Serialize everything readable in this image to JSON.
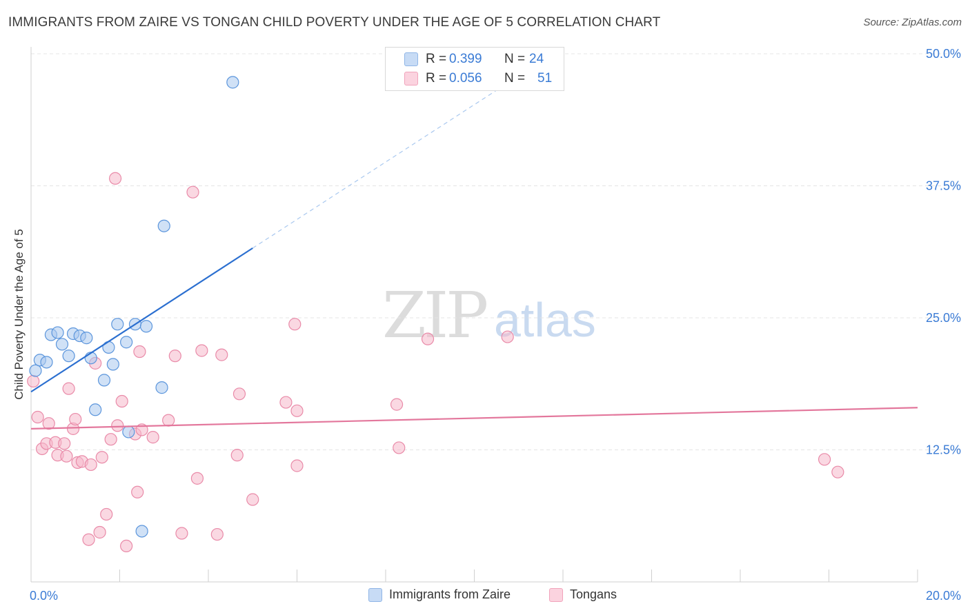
{
  "header": {
    "title": "IMMIGRANTS FROM ZAIRE VS TONGAN CHILD POVERTY UNDER THE AGE OF 5 CORRELATION CHART",
    "source": "Source: ZipAtlas.com"
  },
  "watermark": {
    "zip": "ZIP",
    "atlas": "atlas"
  },
  "legend_top": {
    "rows": [
      {
        "r_label": "R =",
        "r_value": "0.399",
        "n_label": "N =",
        "n_value": "24",
        "color": "#a9c8ef"
      },
      {
        "r_label": "R =",
        "r_value": "0.056",
        "n_label": "N =",
        "n_value": "51",
        "color": "#f5b8cb"
      }
    ]
  },
  "legend_bottom": [
    {
      "label": "Immigrants from Zaire",
      "color": "#a9c8ef"
    },
    {
      "label": "Tongans",
      "color": "#f5b8cb"
    }
  ],
  "chart_data": {
    "type": "scatter",
    "title": "IMMIGRANTS FROM ZAIRE VS TONGAN CHILD POVERTY UNDER THE AGE OF 5 CORRELATION CHART",
    "xlabel": "",
    "ylabel": "Child Poverty Under the Age of 5",
    "xlim": [
      0,
      20
    ],
    "ylim": [
      0,
      50
    ],
    "x_tick_labels": [
      "0.0%",
      "20.0%"
    ],
    "y_tick_labels": [
      "12.5%",
      "25.0%",
      "37.5%",
      "50.0%"
    ],
    "y_ticks": [
      12.5,
      25.0,
      37.5,
      50.0
    ],
    "grid": true,
    "colors": {
      "zaire": "#5b95dc",
      "zaire_fill": "#a9c8ef",
      "zaire_line": "#2b6fd0",
      "tongan": "#e98aa8",
      "tongan_fill": "#f5b8cb",
      "tongan_line": "#e3779c",
      "tick_text": "#3a7bd5"
    },
    "series": [
      {
        "name": "Immigrants from Zaire",
        "points": [
          [
            0.1,
            20.0
          ],
          [
            0.2,
            21.0
          ],
          [
            0.35,
            20.8
          ],
          [
            0.45,
            23.4
          ],
          [
            0.6,
            23.6
          ],
          [
            0.7,
            22.5
          ],
          [
            0.85,
            21.4
          ],
          [
            0.95,
            23.5
          ],
          [
            1.1,
            23.3
          ],
          [
            1.25,
            23.1
          ],
          [
            1.35,
            21.2
          ],
          [
            1.45,
            16.3
          ],
          [
            1.65,
            19.1
          ],
          [
            1.75,
            22.2
          ],
          [
            1.85,
            20.6
          ],
          [
            1.95,
            24.4
          ],
          [
            2.15,
            22.7
          ],
          [
            2.2,
            14.2
          ],
          [
            2.35,
            24.4
          ],
          [
            2.5,
            4.8
          ],
          [
            2.6,
            24.2
          ],
          [
            2.95,
            18.4
          ],
          [
            3.0,
            33.7
          ],
          [
            4.55,
            47.3
          ]
        ],
        "trend": {
          "x": [
            0,
            5.0
          ],
          "y": [
            18.0,
            31.6
          ],
          "dashed_to": [
            11.0,
            47.9
          ]
        }
      },
      {
        "name": "Tongans",
        "points": [
          [
            0.05,
            19.0
          ],
          [
            0.15,
            15.6
          ],
          [
            0.25,
            12.6
          ],
          [
            0.35,
            13.1
          ],
          [
            0.4,
            15.0
          ],
          [
            0.55,
            13.2
          ],
          [
            0.6,
            12.0
          ],
          [
            0.75,
            13.1
          ],
          [
            0.8,
            11.9
          ],
          [
            0.85,
            18.3
          ],
          [
            0.95,
            14.5
          ],
          [
            1.0,
            15.4
          ],
          [
            1.05,
            11.3
          ],
          [
            1.15,
            11.4
          ],
          [
            1.35,
            11.1
          ],
          [
            1.45,
            20.7
          ],
          [
            1.6,
            11.8
          ],
          [
            1.7,
            6.4
          ],
          [
            1.8,
            13.5
          ],
          [
            1.9,
            38.2
          ],
          [
            1.95,
            14.8
          ],
          [
            2.05,
            17.1
          ],
          [
            2.35,
            14.0
          ],
          [
            2.4,
            8.5
          ],
          [
            2.45,
            21.8
          ],
          [
            2.5,
            14.4
          ],
          [
            2.75,
            13.7
          ],
          [
            3.1,
            15.3
          ],
          [
            3.25,
            21.4
          ],
          [
            3.4,
            4.6
          ],
          [
            3.65,
            36.9
          ],
          [
            3.75,
            9.8
          ],
          [
            3.85,
            21.9
          ],
          [
            4.2,
            4.5
          ],
          [
            4.3,
            21.5
          ],
          [
            4.65,
            12.0
          ],
          [
            4.7,
            17.8
          ],
          [
            5.0,
            7.8
          ],
          [
            5.75,
            17.0
          ],
          [
            5.95,
            24.4
          ],
          [
            6.0,
            16.2
          ],
          [
            6.0,
            11.0
          ],
          [
            1.3,
            4.0
          ],
          [
            1.55,
            4.7
          ],
          [
            2.15,
            3.4
          ],
          [
            8.3,
            12.7
          ],
          [
            8.25,
            16.8
          ],
          [
            8.95,
            23.0
          ],
          [
            10.75,
            23.2
          ],
          [
            17.9,
            11.6
          ],
          [
            18.2,
            10.4
          ]
        ],
        "trend": {
          "x": [
            0,
            20.0
          ],
          "y": [
            14.5,
            16.5
          ]
        }
      }
    ]
  }
}
